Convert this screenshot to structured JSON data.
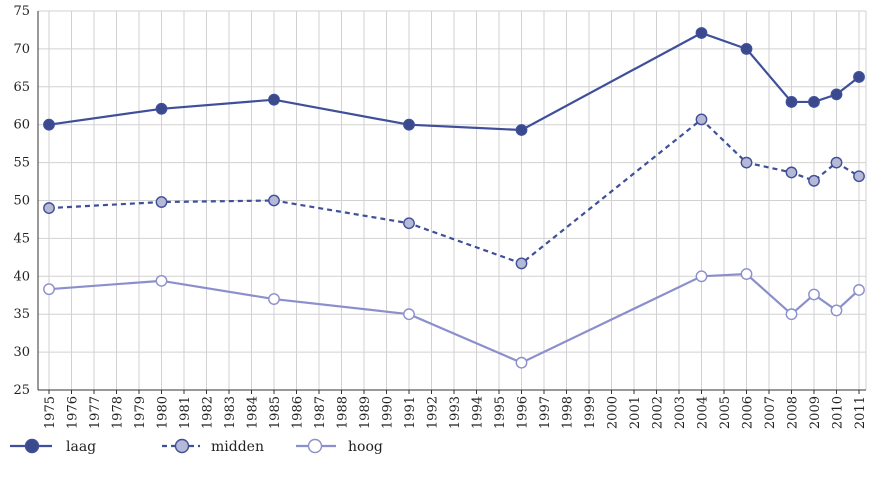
{
  "chart_data": {
    "type": "line",
    "title": "",
    "xlabel": "",
    "ylabel": "",
    "x_categories": [
      "1975",
      "1976",
      "1977",
      "1978",
      "1979",
      "1980",
      "1981",
      "1982",
      "1983",
      "1984",
      "1985",
      "1986",
      "1987",
      "1988",
      "1989",
      "1990",
      "1991",
      "1992",
      "1993",
      "1994",
      "1995",
      "1996",
      "1997",
      "1998",
      "1999",
      "2000",
      "2001",
      "2002",
      "2003",
      "2004",
      "2005",
      "2006",
      "2007",
      "2008",
      "2009",
      "2010",
      "2011"
    ],
    "ylim": [
      25,
      75
    ],
    "y_ticks": [
      25,
      30,
      35,
      40,
      45,
      50,
      55,
      60,
      65,
      70,
      75
    ],
    "grid": true,
    "legend_position": "bottom-left",
    "series": [
      {
        "name": "laag",
        "line_style": "solid",
        "marker_fill": "#3a4a8c",
        "line_color": "#3f4f99",
        "x": [
          "1975",
          "1980",
          "1985",
          "1991",
          "1996",
          "2004",
          "2006",
          "2008",
          "2009",
          "2010",
          "2011"
        ],
        "values": [
          60.0,
          62.1,
          63.3,
          60.0,
          59.3,
          72.1,
          70.0,
          63.0,
          63.0,
          64.0,
          66.3
        ]
      },
      {
        "name": "midden",
        "line_style": "dashed",
        "marker_fill": "#b6b9d6",
        "line_color": "#3f4f99",
        "x": [
          "1975",
          "1980",
          "1985",
          "1991",
          "1996",
          "2004",
          "2006",
          "2008",
          "2009",
          "2010",
          "2011"
        ],
        "values": [
          49.0,
          49.8,
          50.0,
          47.0,
          41.7,
          60.7,
          55.0,
          53.7,
          52.6,
          55.0,
          53.2
        ]
      },
      {
        "name": "hoog",
        "line_style": "solid",
        "marker_fill": "#ffffff",
        "line_color": "#8b8fcb",
        "x": [
          "1975",
          "1980",
          "1985",
          "1991",
          "1996",
          "2004",
          "2006",
          "2008",
          "2009",
          "2010",
          "2011"
        ],
        "values": [
          38.3,
          39.4,
          37.0,
          35.0,
          28.6,
          40.0,
          40.3,
          35.0,
          37.6,
          35.5,
          38.2
        ]
      }
    ]
  }
}
